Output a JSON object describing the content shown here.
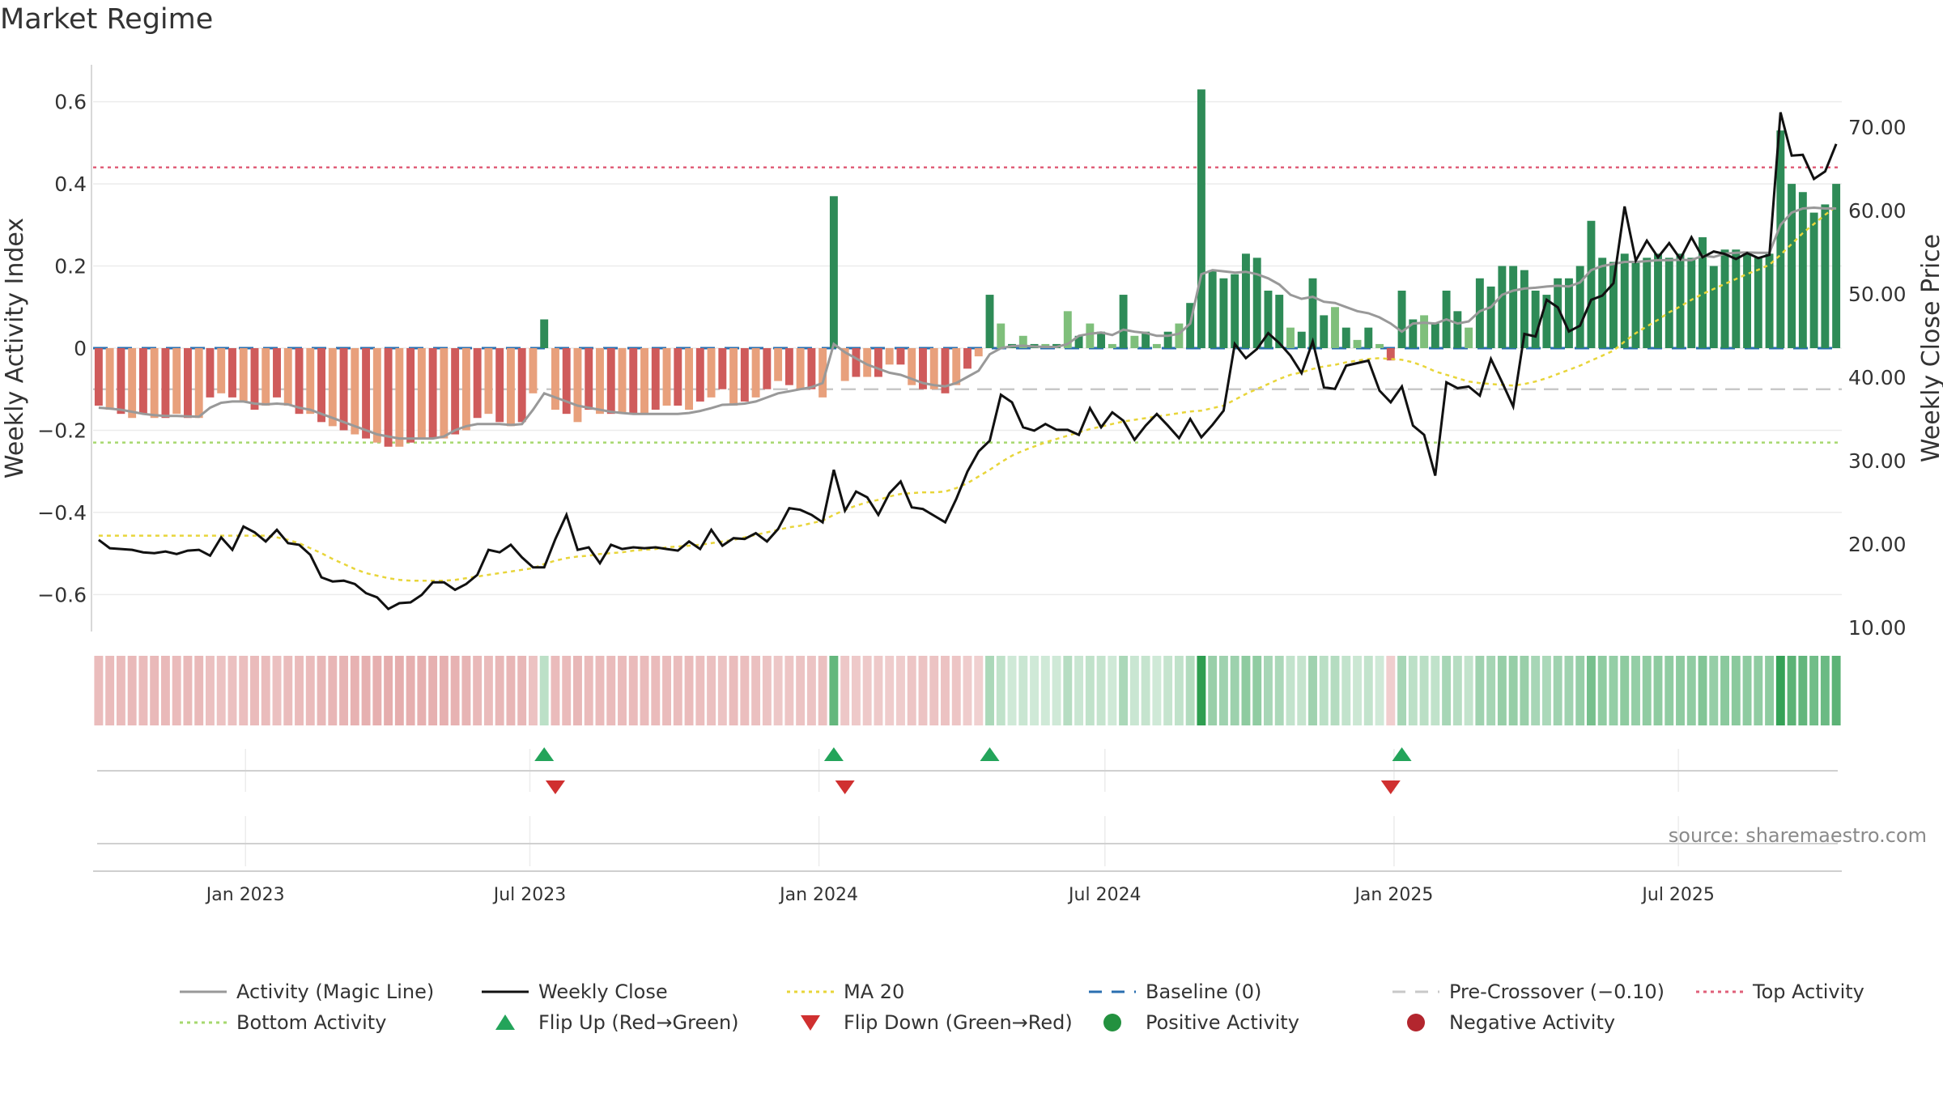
{
  "chart_data": {
    "type": "bar",
    "title": "Market Regime",
    "ylabel_left": "Weekly Activity Index",
    "ylabel_right": "Weekly Close Price",
    "ylim_left": [
      -0.69,
      0.69
    ],
    "ylim_right": [
      9.5,
      77.5
    ],
    "yticks_left": [
      -0.6,
      -0.4,
      -0.2,
      0,
      0.2,
      0.4,
      0.6
    ],
    "yticks_left_labels": [
      "−0.6",
      "−0.4",
      "−0.2",
      "0",
      "0.2",
      "0.4",
      "0.6"
    ],
    "yticks_right": [
      10,
      20,
      30,
      40,
      50,
      60,
      70
    ],
    "yticks_right_labels": [
      "10.00",
      "20.00",
      "30.00",
      "40.00",
      "50.00",
      "60.00",
      "70.00"
    ],
    "x_start": "2022-09-26",
    "x_end": "2025-10-13",
    "xticks": [
      "2023-01-01",
      "2023-07-01",
      "2024-01-01",
      "2024-07-01",
      "2025-01-01",
      "2025-07-01"
    ],
    "xtick_labels": [
      "Jan 2023",
      "Jul 2023",
      "Jan 2024",
      "Jul 2024",
      "Jan 2025",
      "Jul 2025"
    ],
    "grid": true,
    "legend_position": "bottom",
    "source_text": "source: sharemaestro.com",
    "reference_lines": {
      "baseline": 0,
      "pre_crossover": -0.1,
      "top_activity": 0.44,
      "bottom_activity": -0.23
    },
    "activity": [
      -0.14,
      -0.15,
      -0.16,
      -0.17,
      -0.16,
      -0.17,
      -0.17,
      -0.16,
      -0.17,
      -0.17,
      -0.12,
      -0.11,
      -0.12,
      -0.13,
      -0.15,
      -0.14,
      -0.12,
      -0.14,
      -0.16,
      -0.16,
      -0.18,
      -0.19,
      -0.2,
      -0.21,
      -0.22,
      -0.23,
      -0.24,
      -0.24,
      -0.23,
      -0.22,
      -0.22,
      -0.22,
      -0.21,
      -0.2,
      -0.17,
      -0.16,
      -0.18,
      -0.19,
      -0.18,
      -0.11,
      0.07,
      -0.15,
      -0.16,
      -0.18,
      -0.15,
      -0.16,
      -0.16,
      -0.16,
      -0.16,
      -0.16,
      -0.15,
      -0.14,
      -0.14,
      -0.15,
      -0.13,
      -0.12,
      -0.1,
      -0.14,
      -0.13,
      -0.12,
      -0.1,
      -0.08,
      -0.09,
      -0.1,
      -0.1,
      -0.12,
      0.37,
      -0.08,
      -0.07,
      -0.07,
      -0.07,
      -0.04,
      -0.04,
      -0.09,
      -0.1,
      -0.1,
      -0.11,
      -0.09,
      -0.05,
      -0.02,
      0.13,
      0.06,
      0.01,
      0.03,
      0.01,
      0.01,
      0.01,
      0.09,
      0.03,
      0.06,
      0.04,
      0.01,
      0.13,
      0.03,
      0.04,
      0.01,
      0.04,
      0.06,
      0.11,
      0.63,
      0.19,
      0.17,
      0.18,
      0.23,
      0.22,
      0.14,
      0.13,
      0.05,
      0.04,
      0.17,
      0.08,
      0.1,
      0.05,
      0.02,
      0.05,
      0.01,
      -0.03,
      0.14,
      0.07,
      0.08,
      0.06,
      0.14,
      0.09,
      0.05,
      0.17,
      0.15,
      0.2,
      0.2,
      0.19,
      0.14,
      0.13,
      0.17,
      0.17,
      0.2,
      0.31,
      0.22,
      0.21,
      0.23,
      0.21,
      0.22,
      0.23,
      0.22,
      0.23,
      0.22,
      0.27,
      0.2,
      0.24,
      0.24,
      0.23,
      0.22,
      0.23,
      0.53,
      0.4,
      0.38,
      0.33,
      0.35,
      0.4
    ],
    "magic_line": [
      -0.145,
      -0.147,
      -0.15,
      -0.155,
      -0.16,
      -0.163,
      -0.165,
      -0.165,
      -0.166,
      -0.167,
      -0.145,
      -0.133,
      -0.13,
      -0.13,
      -0.135,
      -0.137,
      -0.135,
      -0.137,
      -0.145,
      -0.15,
      -0.16,
      -0.17,
      -0.18,
      -0.19,
      -0.2,
      -0.21,
      -0.215,
      -0.22,
      -0.22,
      -0.22,
      -0.22,
      -0.215,
      -0.2,
      -0.19,
      -0.185,
      -0.185,
      -0.185,
      -0.187,
      -0.185,
      -0.15,
      -0.11,
      -0.12,
      -0.13,
      -0.14,
      -0.145,
      -0.15,
      -0.155,
      -0.158,
      -0.16,
      -0.16,
      -0.16,
      -0.16,
      -0.16,
      -0.158,
      -0.153,
      -0.146,
      -0.138,
      -0.137,
      -0.135,
      -0.13,
      -0.12,
      -0.11,
      -0.105,
      -0.1,
      -0.095,
      -0.085,
      0.01,
      -0.01,
      -0.025,
      -0.04,
      -0.05,
      -0.06,
      -0.065,
      -0.075,
      -0.085,
      -0.09,
      -0.093,
      -0.085,
      -0.07,
      -0.055,
      -0.015,
      0.0,
      0.005,
      0.006,
      0.004,
      0.003,
      0.003,
      0.01,
      0.03,
      0.035,
      0.038,
      0.032,
      0.045,
      0.04,
      0.037,
      0.03,
      0.03,
      0.035,
      0.06,
      0.18,
      0.19,
      0.187,
      0.184,
      0.186,
      0.18,
      0.17,
      0.155,
      0.13,
      0.12,
      0.125,
      0.113,
      0.11,
      0.1,
      0.09,
      0.085,
      0.075,
      0.06,
      0.04,
      0.06,
      0.062,
      0.06,
      0.07,
      0.06,
      0.065,
      0.09,
      0.1,
      0.13,
      0.14,
      0.145,
      0.147,
      0.15,
      0.152,
      0.15,
      0.16,
      0.19,
      0.2,
      0.205,
      0.21,
      0.21,
      0.212,
      0.214,
      0.214,
      0.215,
      0.214,
      0.225,
      0.222,
      0.23,
      0.232,
      0.233,
      0.232,
      0.232,
      0.3,
      0.33,
      0.34,
      0.342,
      0.34,
      0.34
    ],
    "weekly_close": [
      20.5,
      19.5,
      19.4,
      19.3,
      19.0,
      18.9,
      19.1,
      18.8,
      19.2,
      19.3,
      18.6,
      20.8,
      19.3,
      22.1,
      21.4,
      20.3,
      21.7,
      20.1,
      19.9,
      18.7,
      16.0,
      15.5,
      15.6,
      15.2,
      14.1,
      13.6,
      12.2,
      12.9,
      13.0,
      13.9,
      15.4,
      15.4,
      14.5,
      15.2,
      16.3,
      19.3,
      19.0,
      19.9,
      18.4,
      17.2,
      17.2,
      20.6,
      23.5,
      19.3,
      19.6,
      17.7,
      19.9,
      19.4,
      19.6,
      19.5,
      19.6,
      19.4,
      19.2,
      20.3,
      19.4,
      21.7,
      19.8,
      20.7,
      20.6,
      21.3,
      20.3,
      21.8,
      24.3,
      24.1,
      23.5,
      22.6,
      28.9,
      24.0,
      26.3,
      25.6,
      23.5,
      26.1,
      27.5,
      24.4,
      24.2,
      23.4,
      22.6,
      25.4,
      28.7,
      31.1,
      32.4,
      37.9,
      37.0,
      34.0,
      33.6,
      34.4,
      33.7,
      33.7,
      33.1,
      36.3,
      34.0,
      35.8,
      34.8,
      32.5,
      34.2,
      35.6,
      34.2,
      32.7,
      35.0,
      32.8,
      34.3,
      36.0,
      44.0,
      42.3,
      43.4,
      45.3,
      44.1,
      42.6,
      40.5,
      44.3,
      38.8,
      38.6,
      41.4,
      41.7,
      42.0,
      38.4,
      37.0,
      38.9,
      34.2,
      33.1,
      28.2,
      39.4,
      38.7,
      38.9,
      37.8,
      42.2,
      39.4,
      36.5,
      45.2,
      44.9,
      49.3,
      48.4,
      45.5,
      46.2,
      49.3,
      49.8,
      51.3,
      60.5,
      54.0,
      56.4,
      54.4,
      56.1,
      54.2,
      56.8,
      54.4,
      55.1,
      54.8,
      54.2,
      54.9,
      54.3,
      54.7,
      71.8,
      66.6,
      66.7,
      63.8,
      64.7,
      68.0
    ],
    "ma20": [
      21.0,
      21.0,
      21.0,
      21.0,
      21.0,
      21.0,
      21.0,
      21.0,
      21.0,
      21.0,
      21.0,
      21.0,
      21.0,
      21.0,
      21.0,
      21.0,
      20.8,
      20.5,
      20.1,
      19.5,
      18.9,
      18.2,
      17.6,
      17.0,
      16.5,
      16.2,
      15.9,
      15.7,
      15.6,
      15.6,
      15.6,
      15.6,
      15.7,
      15.9,
      16.1,
      16.3,
      16.5,
      16.7,
      16.9,
      17.1,
      17.6,
      18.0,
      18.3,
      18.5,
      18.6,
      18.8,
      18.9,
      19.0,
      19.2,
      19.3,
      19.4,
      19.6,
      19.7,
      19.8,
      19.9,
      20.1,
      20.3,
      20.5,
      20.8,
      21.1,
      21.4,
      21.7,
      22.0,
      22.2,
      22.5,
      22.8,
      23.5,
      24.1,
      24.6,
      25.0,
      25.3,
      25.7,
      26.0,
      26.1,
      26.2,
      26.2,
      26.3,
      26.7,
      27.3,
      28.1,
      28.9,
      29.8,
      30.6,
      31.2,
      31.7,
      32.2,
      32.6,
      33.0,
      33.4,
      33.8,
      34.1,
      34.4,
      34.7,
      34.9,
      35.1,
      35.3,
      35.5,
      35.7,
      35.9,
      36.0,
      36.3,
      36.6,
      37.3,
      38.0,
      38.6,
      39.2,
      39.8,
      40.3,
      40.6,
      41.0,
      41.3,
      41.5,
      41.8,
      42.0,
      42.2,
      42.3,
      42.2,
      42.1,
      41.8,
      41.3,
      40.7,
      40.3,
      39.9,
      39.5,
      39.3,
      39.2,
      39.1,
      39.0,
      39.2,
      39.5,
      39.9,
      40.4,
      40.9,
      41.4,
      42.0,
      42.6,
      43.2,
      44.3,
      45.3,
      46.1,
      46.9,
      47.8,
      48.5,
      49.3,
      50.0,
      50.6,
      51.2,
      51.8,
      52.4,
      52.9,
      53.5,
      54.7,
      56.0,
      57.3,
      58.4,
      59.5,
      60.5
    ]
  },
  "legend": [
    {
      "label": "Activity (Magic Line)",
      "marker": "line",
      "color": "#999999",
      "dash": "none"
    },
    {
      "label": "Weekly Close",
      "marker": "line",
      "color": "#111111",
      "dash": "none"
    },
    {
      "label": "MA 20",
      "marker": "line",
      "color": "#e8d53a",
      "dash": "dotted"
    },
    {
      "label": "Baseline (0)",
      "marker": "line",
      "color": "#2a6fb0",
      "dash": "dashed"
    },
    {
      "label": "Pre-Crossover (−0.10)",
      "marker": "line",
      "color": "#c8c8c8",
      "dash": "dashed"
    },
    {
      "label": "Top Activity",
      "marker": "line",
      "color": "#e0607a",
      "dash": "dotted"
    },
    {
      "label": "Bottom Activity",
      "marker": "line",
      "color": "#a6d86e",
      "dash": "dotted"
    },
    {
      "label": "Flip Up (Red→Green)",
      "marker": "triangle-up",
      "color": "#23a45a"
    },
    {
      "label": "Flip Down (Green→Red)",
      "marker": "triangle-down",
      "color": "#d03030"
    },
    {
      "label": "Positive Activity",
      "marker": "circle",
      "color": "#23913f"
    },
    {
      "label": "Negative Activity",
      "marker": "circle",
      "color": "#b3262e"
    }
  ],
  "colors": {
    "pos_strong": "#2e8b57",
    "pos_light": "#7fbf7b",
    "neg_strong": "#cf5b5b",
    "neg_light": "#e8a07c",
    "flip_up": "#23a45a",
    "flip_down": "#d03030"
  }
}
